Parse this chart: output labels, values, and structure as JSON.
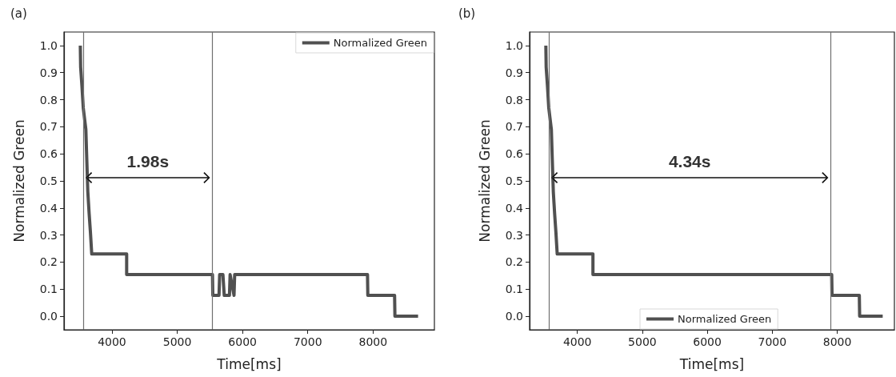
{
  "chart_data": [
    {
      "type": "line",
      "title": "(a)",
      "xlabel": "Time[ms]",
      "ylabel": "Normalized Green",
      "xlim": [
        3265,
        8940
      ],
      "ylim": [
        -0.05,
        1.05
      ],
      "xticks": [
        4000,
        5000,
        6000,
        7000,
        8000
      ],
      "yticks": [
        {
          "value": 0,
          "label": "0.0"
        },
        {
          "value": 0.1,
          "label": "0.1"
        },
        {
          "value": 0.2,
          "label": "0.2"
        },
        {
          "value": 0.3,
          "label": "0.3"
        },
        {
          "value": 0.4,
          "label": "0.4"
        },
        {
          "value": 0.5,
          "label": "0.5"
        },
        {
          "value": 0.6,
          "label": "0.6"
        },
        {
          "value": 0.7,
          "label": "0.7"
        },
        {
          "value": 0.8,
          "label": "0.8"
        },
        {
          "value": 0.9,
          "label": "0.9"
        },
        {
          "value": 1.0,
          "label": "1.0"
        }
      ],
      "grid": false,
      "legend": "top right",
      "marker": "none",
      "line_style": "solid",
      "series": [
        {
          "name": "Normalized Green",
          "color": "#505050",
          "x": [
            3515,
            3520,
            3540,
            3560,
            3600,
            3610,
            3630,
            3650,
            3670,
            3690,
            4225,
            4225,
            5540,
            5545,
            5560,
            5640,
            5650,
            5660,
            5700,
            5720,
            5730,
            5800,
            5810,
            5870,
            5880,
            7915,
            7920,
            8330,
            8335,
            8690
          ],
          "values": [
            1.0,
            0.92,
            0.85,
            0.77,
            0.69,
            0.61,
            0.46,
            0.38,
            0.31,
            0.23,
            0.23,
            0.154,
            0.154,
            0.077,
            0.077,
            0.077,
            0.154,
            0.154,
            0.154,
            0.077,
            0.077,
            0.077,
            0.154,
            0.077,
            0.154,
            0.154,
            0.077,
            0.077,
            0.0,
            0.0
          ]
        }
      ],
      "ref_lines": [
        {
          "axis": "x",
          "value": 3560,
          "color": "#707070"
        },
        {
          "axis": "x",
          "value": 5540,
          "color": "#707070"
        }
      ],
      "annotations": [
        "1.98s"
      ]
    },
    {
      "type": "line",
      "title": "(b)",
      "xlabel": "Time[ms]",
      "ylabel": "Normalized Green",
      "xlim": [
        3265,
        8880
      ],
      "ylim": [
        -0.05,
        1.05
      ],
      "xticks": [
        4000,
        5000,
        6000,
        7000,
        8000
      ],
      "yticks": [
        {
          "value": 0,
          "label": "0.0"
        },
        {
          "value": 0.1,
          "label": "0.1"
        },
        {
          "value": 0.2,
          "label": "0.2"
        },
        {
          "value": 0.3,
          "label": "0.3"
        },
        {
          "value": 0.4,
          "label": "0.4"
        },
        {
          "value": 0.5,
          "label": "0.5"
        },
        {
          "value": 0.6,
          "label": "0.6"
        },
        {
          "value": 0.7,
          "label": "0.7"
        },
        {
          "value": 0.8,
          "label": "0.8"
        },
        {
          "value": 0.9,
          "label": "0.9"
        },
        {
          "value": 1.0,
          "label": "1.0"
        }
      ],
      "grid": false,
      "legend": "bottom",
      "marker": "none",
      "line_style": "solid",
      "series": [
        {
          "name": "Normalized Green",
          "color": "#505050",
          "x": [
            3515,
            3520,
            3540,
            3560,
            3600,
            3610,
            3630,
            3650,
            3670,
            3690,
            4240,
            4240,
            7915,
            7920,
            8340,
            8345,
            8700
          ],
          "values": [
            1.0,
            0.92,
            0.85,
            0.77,
            0.69,
            0.61,
            0.46,
            0.38,
            0.31,
            0.23,
            0.23,
            0.154,
            0.154,
            0.077,
            0.077,
            0.0,
            0.0
          ]
        }
      ],
      "ref_lines": [
        {
          "axis": "x",
          "value": 3560,
          "color": "#707070"
        },
        {
          "axis": "x",
          "value": 7900,
          "color": "#707070"
        }
      ],
      "annotations": [
        "4.34s"
      ]
    }
  ]
}
